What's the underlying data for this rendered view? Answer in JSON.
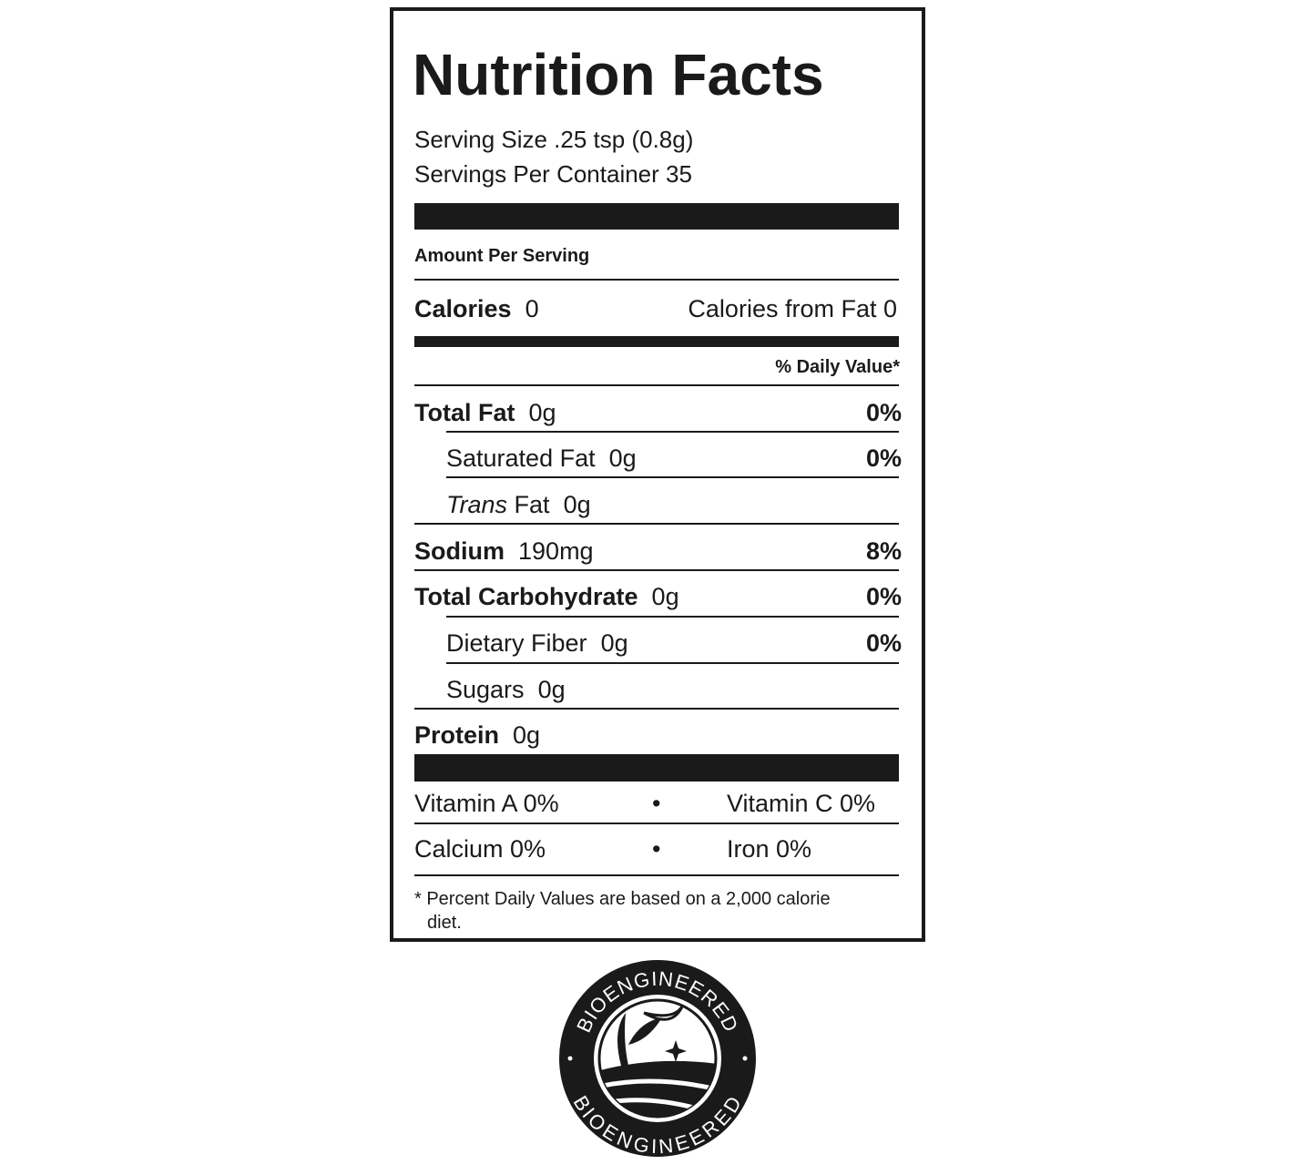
{
  "title": "Nutrition Facts",
  "serving_size": "Serving Size .25 tsp (0.8g)",
  "servings_per_container": "Servings Per Container 35",
  "amount_per_serving": "Amount Per Serving",
  "calories": {
    "label": "Calories",
    "value": "0",
    "from_fat": "Calories from Fat 0"
  },
  "daily_value_header": "% Daily Value*",
  "nutrients": [
    {
      "label": "Total Fat",
      "amount": "0g",
      "dv": "0%"
    },
    {
      "label": "Saturated Fat",
      "amount": "0g",
      "dv": "0%"
    },
    {
      "label_italic": "Trans",
      "label": "Fat",
      "amount": "0g"
    },
    {
      "label": "Sodium",
      "amount": "190mg",
      "dv": "8%"
    },
    {
      "label": "Total Carbohydrate",
      "amount": "0g",
      "dv": "0%"
    },
    {
      "label": "Dietary Fiber",
      "amount": "0g",
      "dv": "0%"
    },
    {
      "label": "Sugars",
      "amount": "0g"
    },
    {
      "label": "Protein",
      "amount": "0g"
    }
  ],
  "vitamins": [
    {
      "left": "Vitamin A 0%",
      "sep": "•",
      "right": "Vitamin C 0%"
    },
    {
      "left": "Calcium 0%",
      "sep": "•",
      "right": "Iron 0%"
    }
  ],
  "footnote_line1": "* Percent Daily Values are based on a 2,000 calorie",
  "footnote_line2": "diet.",
  "logo": {
    "text": "BIOENGINEERED"
  }
}
